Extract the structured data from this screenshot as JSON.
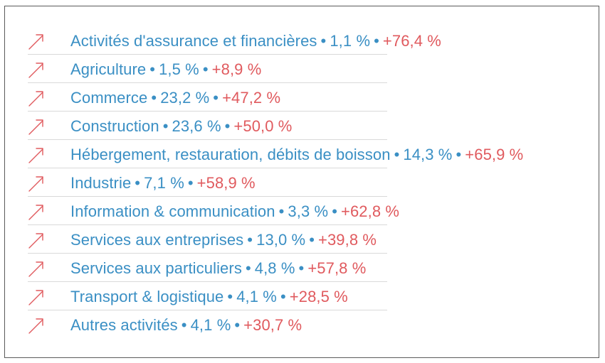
{
  "colors": {
    "accent_blue": "#3a8fc4",
    "accent_red": "#e05a5e",
    "divider": "#d9d9d9"
  },
  "icon": "trend-up-arrow-icon",
  "separator": "•",
  "rows": [
    {
      "sector": "Activités d'assurance et financières",
      "share": "1,1 %",
      "growth": "+76,4 %"
    },
    {
      "sector": "Agriculture",
      "share": "1,5 %",
      "growth": "+8,9 %"
    },
    {
      "sector": "Commerce",
      "share": "23,2 %",
      "growth": "+47,2 %"
    },
    {
      "sector": "Construction",
      "share": "23,6 %",
      "growth": "+50,0 %"
    },
    {
      "sector": "Hébergement, restauration, débits de boisson",
      "share": "14,3 %",
      "growth": "+65,9 %"
    },
    {
      "sector": "Industrie",
      "share": "7,1 %",
      "growth": "+58,9 %"
    },
    {
      "sector": "Information & communication",
      "share": "3,3 %",
      "growth": "+62,8 %"
    },
    {
      "sector": "Services aux entreprises",
      "share": "13,0 %",
      "growth": "+39,8 %"
    },
    {
      "sector": "Services aux particuliers",
      "share": "4,8 %",
      "growth": "+57,8 %"
    },
    {
      "sector": "Transport & logistique",
      "share": "4,1 %",
      "growth": "+28,5 %"
    },
    {
      "sector": "Autres activités",
      "share": "4,1 %",
      "growth": "+30,7 %"
    }
  ]
}
